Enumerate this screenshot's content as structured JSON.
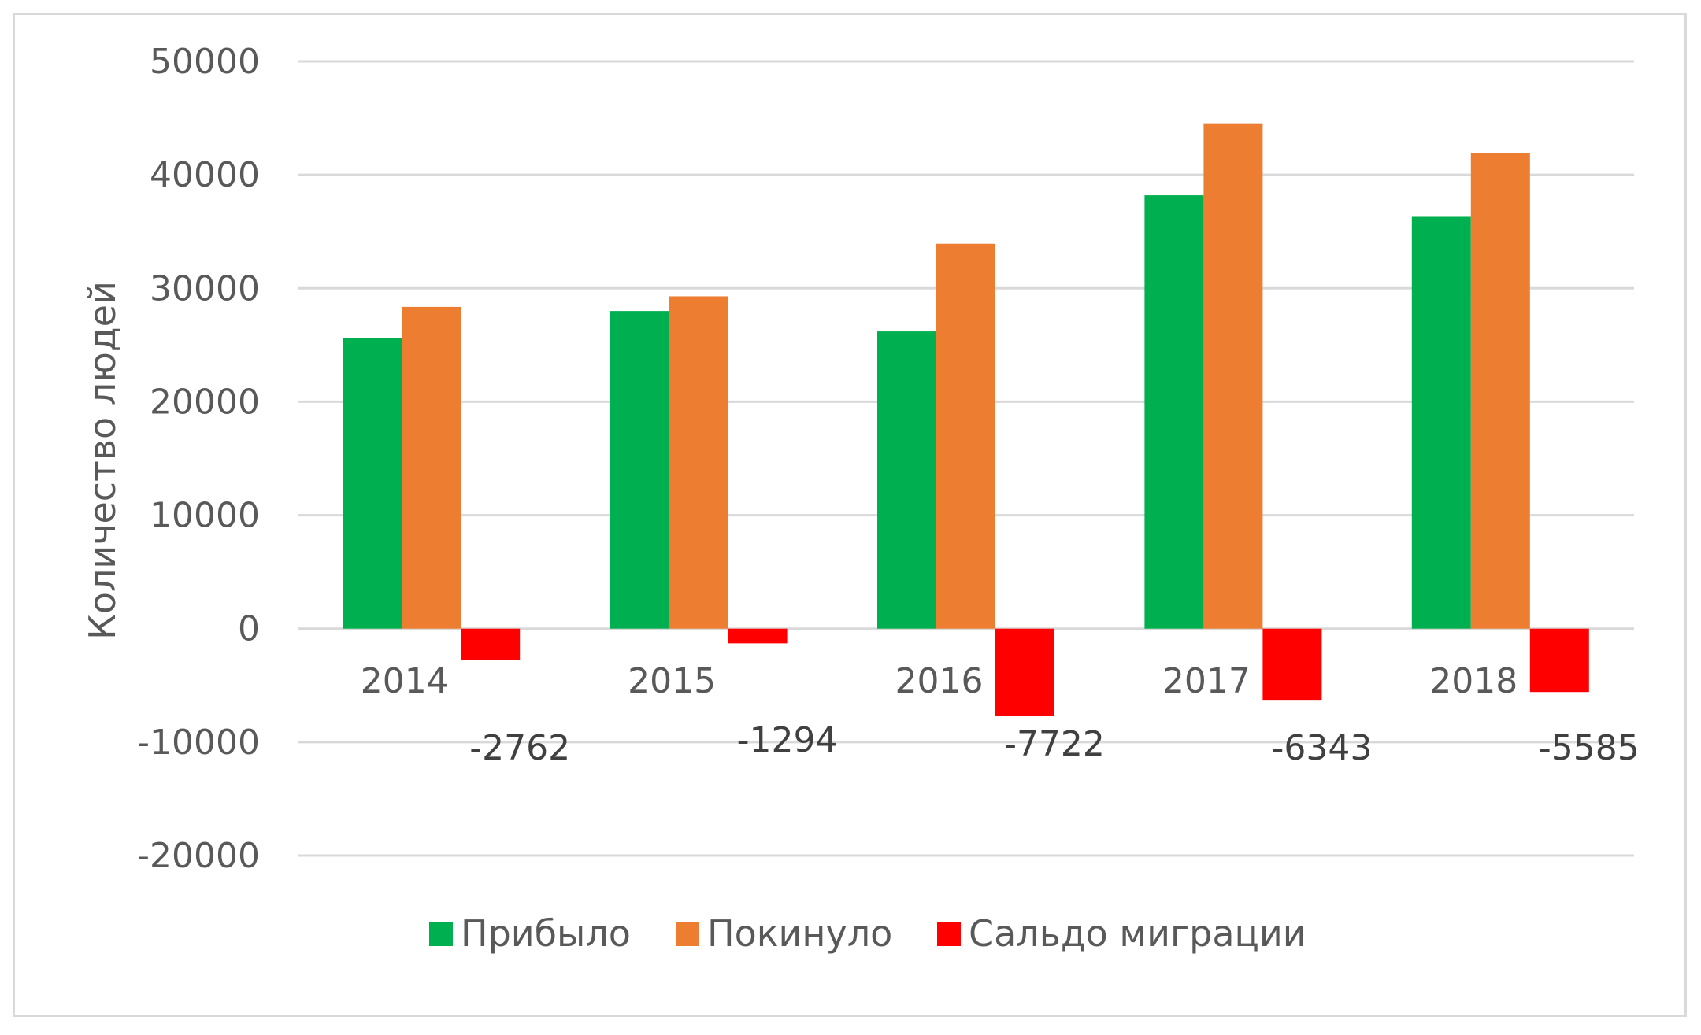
{
  "chart_data": {
    "type": "bar",
    "title": "",
    "xlabel": "",
    "ylabel": "Количество людей",
    "categories": [
      "2014",
      "2015",
      "2016",
      "2017",
      "2018"
    ],
    "series": [
      {
        "name": "Прибыло",
        "color": "#00b050",
        "values": [
          25600,
          28000,
          26200,
          38200,
          36300
        ]
      },
      {
        "name": "Покинуло",
        "color": "#ed7d31",
        "values": [
          28362,
          29294,
          33922,
          44543,
          41885
        ]
      },
      {
        "name": "Сальдо миграции",
        "color": "#ff0000",
        "values": [
          -2762,
          -1294,
          -7722,
          -6343,
          -5585
        ]
      }
    ],
    "data_labels": [
      "-2762",
      "-1294",
      "-7722",
      "-6343",
      "-5585"
    ],
    "ylim": [
      -20000,
      50000
    ],
    "yticks": [
      "50000",
      "40000",
      "30000",
      "20000",
      "10000",
      "0",
      "-10000",
      "-20000"
    ],
    "grid": true,
    "legend_position": "bottom"
  }
}
